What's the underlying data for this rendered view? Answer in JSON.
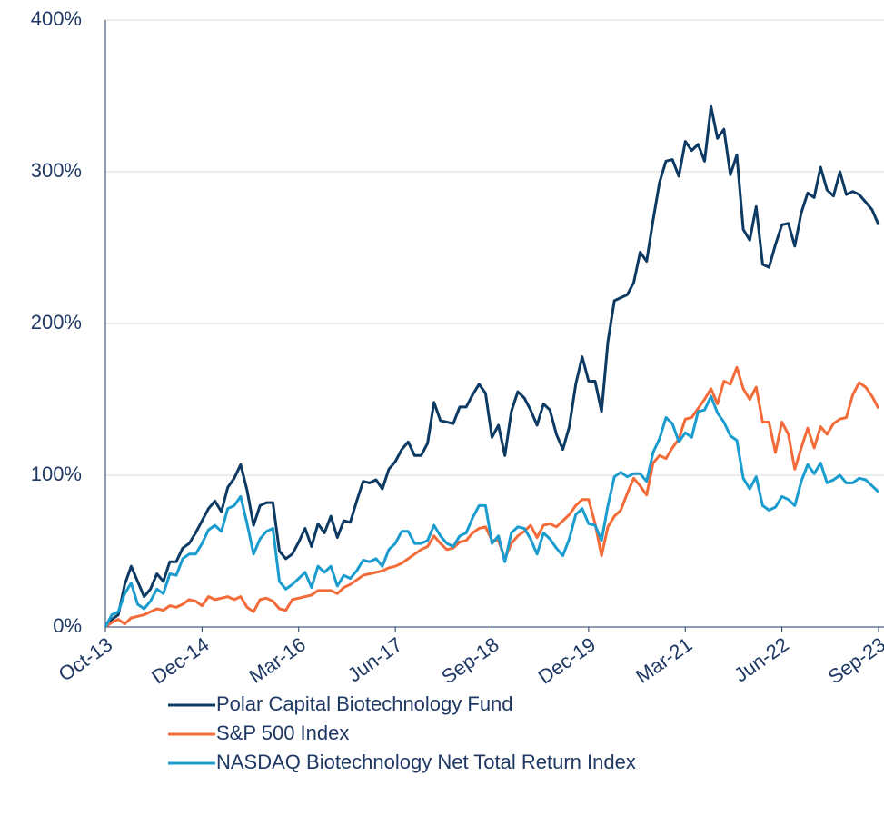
{
  "chart_data": {
    "type": "line",
    "categories": [
      "Oct-13",
      null,
      null,
      null,
      null,
      null,
      null,
      null,
      null,
      null,
      null,
      null,
      null,
      null,
      null,
      "Dec-14",
      null,
      null,
      null,
      null,
      null,
      null,
      null,
      null,
      null,
      null,
      null,
      null,
      null,
      null,
      "Mar-16",
      null,
      null,
      null,
      null,
      null,
      null,
      null,
      null,
      null,
      null,
      null,
      null,
      null,
      null,
      "Jun-17",
      null,
      null,
      null,
      null,
      null,
      null,
      null,
      null,
      null,
      null,
      null,
      null,
      null,
      null,
      "Sep-18",
      null,
      null,
      null,
      null,
      null,
      null,
      null,
      null,
      null,
      null,
      null,
      null,
      null,
      null,
      "Dec-19",
      null,
      null,
      null,
      null,
      null,
      null,
      null,
      null,
      null,
      null,
      null,
      null,
      null,
      null,
      "Mar-21",
      null,
      null,
      null,
      null,
      null,
      null,
      null,
      null,
      null,
      null,
      null,
      null,
      null,
      null,
      "Jun-22",
      null,
      null,
      null,
      null,
      null,
      null,
      null,
      null,
      null,
      null,
      null,
      null,
      null,
      null,
      "Sep-23"
    ],
    "series": [
      {
        "name": "Polar Capital Biotechnology Fund",
        "color": "#0d3a63",
        "values": [
          0,
          5,
          8,
          28,
          40,
          30,
          20,
          25,
          35,
          30,
          43,
          43,
          52,
          55,
          62,
          70,
          78,
          83,
          76,
          92,
          98,
          107,
          90,
          67,
          80,
          82,
          82,
          50,
          45,
          48,
          56,
          65,
          53,
          68,
          62,
          73,
          59,
          70,
          69,
          83,
          96,
          95,
          97,
          91,
          104,
          109,
          117,
          122,
          113,
          113,
          121,
          148,
          136,
          135,
          134,
          145,
          145,
          153,
          160,
          154,
          125,
          133,
          113,
          142,
          155,
          151,
          143,
          133,
          147,
          143,
          127,
          117,
          132,
          160,
          178,
          162,
          162,
          142,
          188,
          215,
          217,
          219,
          227,
          247,
          241,
          268,
          293,
          307,
          308,
          297,
          320,
          314,
          318,
          307,
          343,
          322,
          328,
          298,
          311,
          262,
          255,
          277,
          239,
          237,
          252,
          265,
          266,
          251,
          273,
          286,
          283,
          303,
          288,
          284,
          300,
          285,
          287,
          285,
          280,
          275,
          265
        ]
      },
      {
        "name": "S&P 500 Index",
        "color": "#f26b38",
        "values": [
          0,
          3,
          5,
          2,
          6,
          7,
          8,
          10,
          12,
          11,
          14,
          13,
          15,
          18,
          17,
          14,
          20,
          18,
          19,
          20,
          18,
          20,
          13,
          10,
          18,
          19,
          17,
          12,
          11,
          18,
          19,
          20,
          21,
          24,
          24,
          24,
          22,
          26,
          28,
          31,
          34,
          35,
          36,
          37,
          39,
          40,
          42,
          45,
          48,
          51,
          53,
          60,
          55,
          51,
          52,
          56,
          57,
          62,
          65,
          66,
          57,
          57,
          45,
          55,
          60,
          63,
          67,
          59,
          67,
          68,
          66,
          70,
          74,
          80,
          84,
          84,
          68,
          47,
          66,
          73,
          77,
          88,
          98,
          93,
          87,
          108,
          113,
          111,
          118,
          124,
          137,
          138,
          144,
          150,
          157,
          147,
          162,
          160,
          171,
          157,
          150,
          158,
          135,
          135,
          115,
          135,
          127,
          104,
          118,
          131,
          118,
          132,
          127,
          134,
          137,
          138,
          153,
          161,
          158,
          152,
          144
        ]
      },
      {
        "name": "NASDAQ Biotechnology Net Total Return Index",
        "color": "#1a9ccf",
        "values": [
          0,
          8,
          10,
          22,
          29,
          15,
          12,
          17,
          25,
          22,
          35,
          34,
          45,
          48,
          48,
          55,
          64,
          67,
          63,
          78,
          80,
          86,
          68,
          48,
          58,
          63,
          65,
          30,
          25,
          28,
          32,
          36,
          26,
          40,
          36,
          40,
          27,
          34,
          32,
          37,
          44,
          43,
          45,
          40,
          51,
          55,
          63,
          63,
          55,
          55,
          57,
          67,
          60,
          55,
          53,
          60,
          62,
          72,
          80,
          80,
          55,
          60,
          43,
          62,
          66,
          65,
          58,
          48,
          62,
          58,
          52,
          47,
          58,
          74,
          78,
          68,
          67,
          57,
          80,
          99,
          102,
          99,
          101,
          101,
          96,
          115,
          124,
          138,
          134,
          122,
          128,
          125,
          142,
          143,
          152,
          141,
          135,
          126,
          123,
          98,
          91,
          99,
          80,
          77,
          79,
          86,
          84,
          80,
          96,
          107,
          101,
          108,
          95,
          97,
          100,
          95,
          95,
          98,
          97,
          93,
          89
        ]
      }
    ],
    "ylim": [
      0,
      400
    ],
    "yticks": [
      {
        "value": 0,
        "label": "0%"
      },
      {
        "value": 100,
        "label": "100%"
      },
      {
        "value": 200,
        "label": "200%"
      },
      {
        "value": 300,
        "label": "300%"
      },
      {
        "value": 400,
        "label": "400%"
      }
    ],
    "grid": true
  }
}
